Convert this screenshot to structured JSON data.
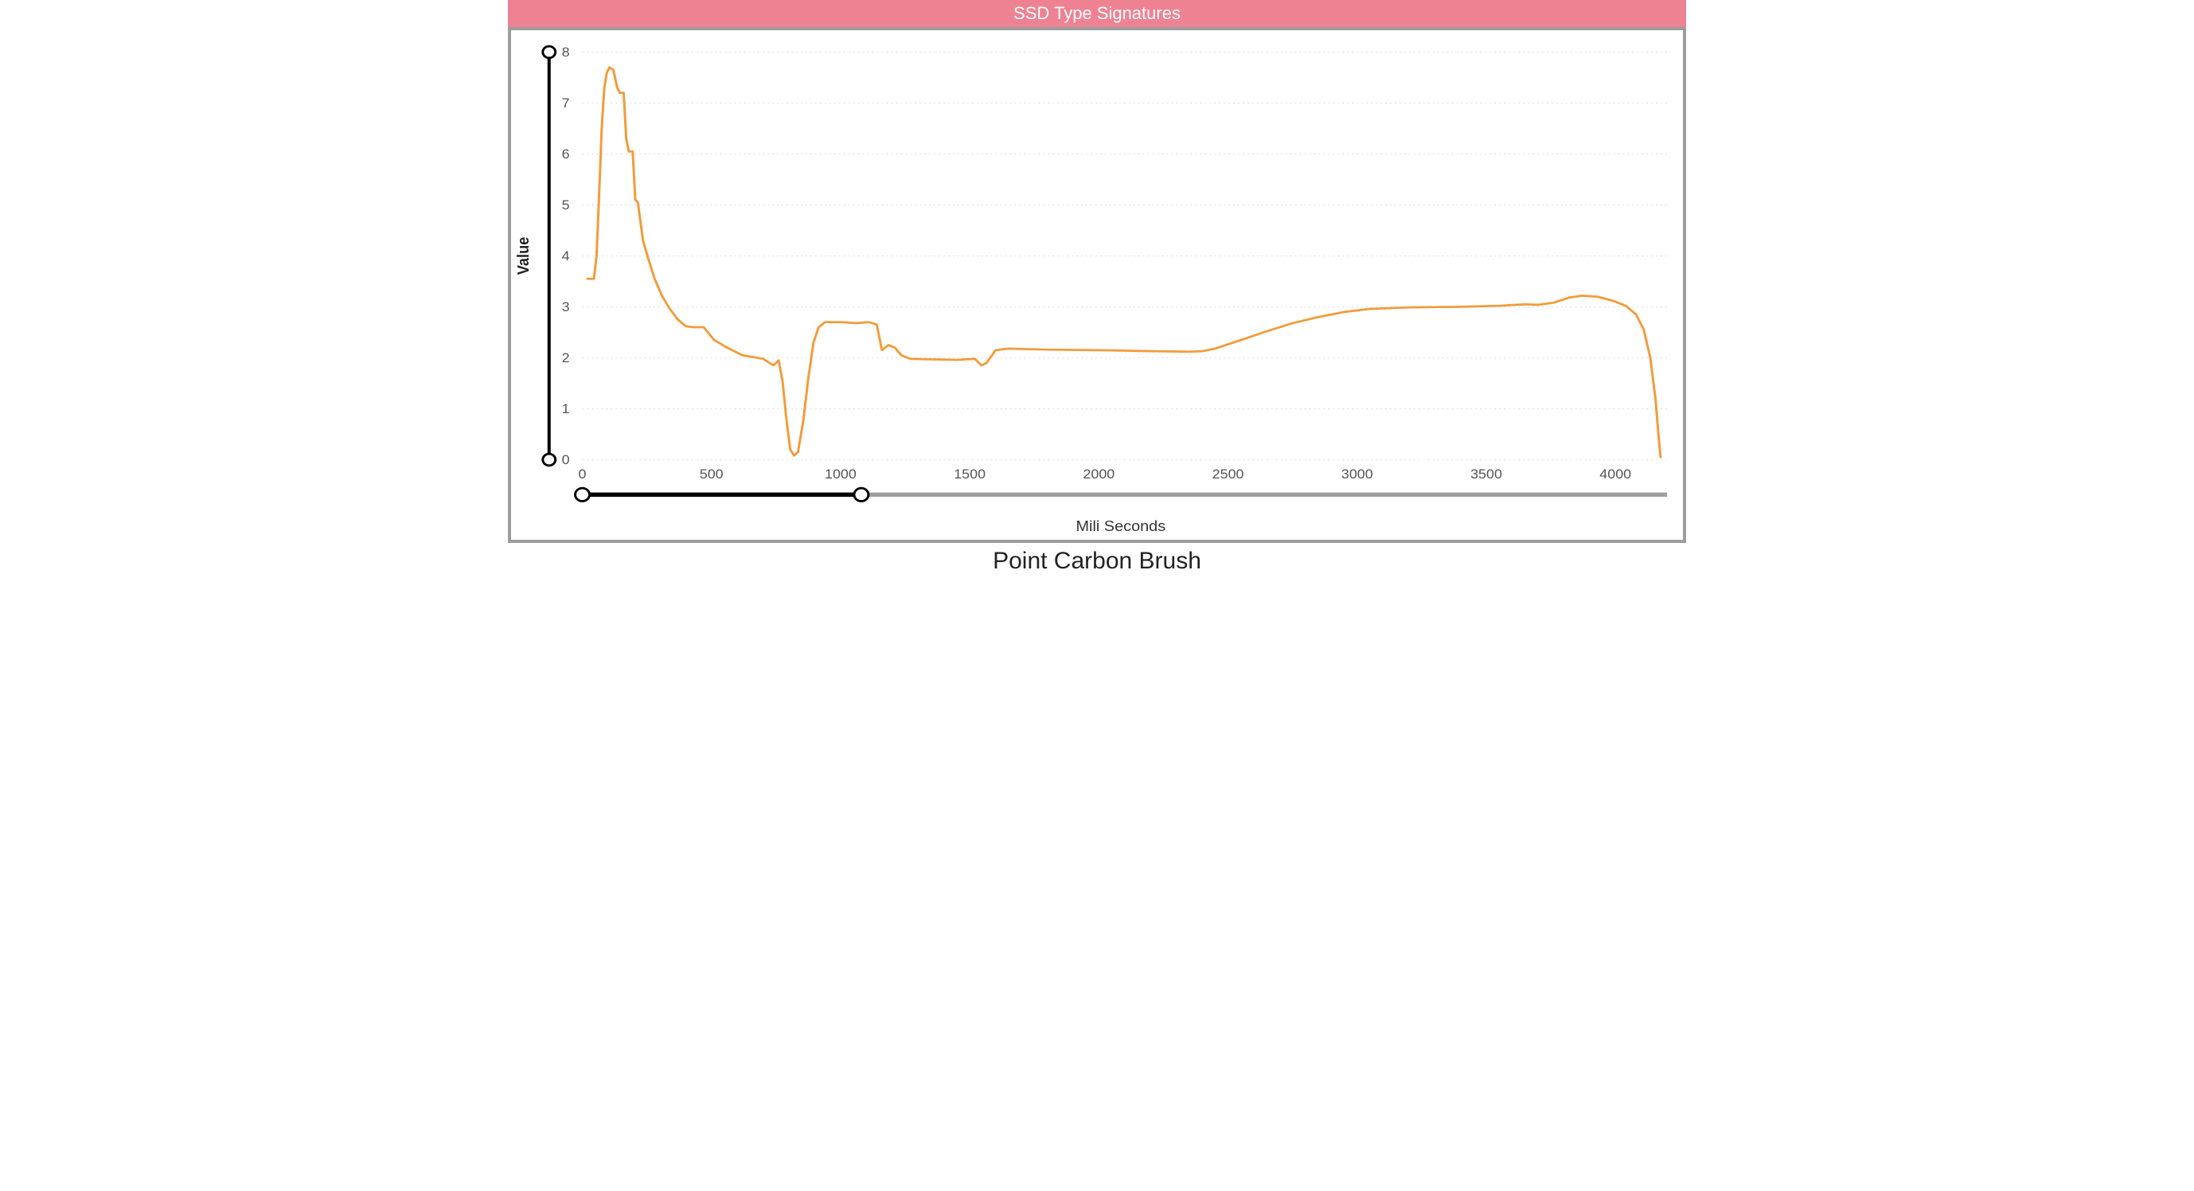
{
  "header": {
    "title": "SSD Type Signatures",
    "background_color": "#ef8292",
    "text_color": "#ffffff",
    "fontsize": 22
  },
  "panel": {
    "border_color": "#9d9d9d",
    "border_width": 4,
    "background_color": "#ffffff"
  },
  "figure_caption": "Point Carbon Brush",
  "chart": {
    "type": "line",
    "xlabel": "Mili Seconds",
    "ylabel": "Value",
    "xlabel_fontsize": 20,
    "ylabel_fontsize": 20,
    "tick_fontsize": 18,
    "line_color": "#f39b3a",
    "line_width": 3,
    "grid_color": "#d9d9d9",
    "axis_text_color": "#555555",
    "background_color": "#ffffff",
    "xlim": [
      0,
      4200
    ],
    "ylim": [
      0,
      8
    ],
    "xticks": [
      0,
      500,
      1000,
      1500,
      2000,
      2500,
      3000,
      3500,
      4000
    ],
    "yticks": [
      0,
      1,
      2,
      3,
      4,
      5,
      6,
      7,
      8
    ],
    "x_brush": {
      "min": 0,
      "max": 4200,
      "sel_min": 0,
      "sel_max": 1080,
      "track_color": "#9d9d9d",
      "sel_color": "#000000",
      "track_width": 6
    },
    "y_brush": {
      "min": 0,
      "max": 8,
      "sel_min": 0,
      "sel_max": 8
    },
    "series": [
      {
        "x": 20,
        "y": 3.55
      },
      {
        "x": 45,
        "y": 3.55
      },
      {
        "x": 55,
        "y": 4.0
      },
      {
        "x": 65,
        "y": 5.2
      },
      {
        "x": 75,
        "y": 6.5
      },
      {
        "x": 85,
        "y": 7.3
      },
      {
        "x": 95,
        "y": 7.6
      },
      {
        "x": 105,
        "y": 7.7
      },
      {
        "x": 120,
        "y": 7.65
      },
      {
        "x": 135,
        "y": 7.3
      },
      {
        "x": 145,
        "y": 7.2
      },
      {
        "x": 160,
        "y": 7.2
      },
      {
        "x": 170,
        "y": 6.3
      },
      {
        "x": 180,
        "y": 6.05
      },
      {
        "x": 195,
        "y": 6.05
      },
      {
        "x": 205,
        "y": 5.1
      },
      {
        "x": 215,
        "y": 5.05
      },
      {
        "x": 235,
        "y": 4.3
      },
      {
        "x": 255,
        "y": 3.95
      },
      {
        "x": 280,
        "y": 3.55
      },
      {
        "x": 310,
        "y": 3.2
      },
      {
        "x": 340,
        "y": 2.95
      },
      {
        "x": 370,
        "y": 2.75
      },
      {
        "x": 400,
        "y": 2.62
      },
      {
        "x": 430,
        "y": 2.6
      },
      {
        "x": 470,
        "y": 2.6
      },
      {
        "x": 510,
        "y": 2.35
      },
      {
        "x": 560,
        "y": 2.2
      },
      {
        "x": 620,
        "y": 2.05
      },
      {
        "x": 700,
        "y": 1.98
      },
      {
        "x": 740,
        "y": 1.85
      },
      {
        "x": 760,
        "y": 1.95
      },
      {
        "x": 775,
        "y": 1.55
      },
      {
        "x": 790,
        "y": 0.8
      },
      {
        "x": 805,
        "y": 0.2
      },
      {
        "x": 820,
        "y": 0.08
      },
      {
        "x": 835,
        "y": 0.15
      },
      {
        "x": 855,
        "y": 0.75
      },
      {
        "x": 875,
        "y": 1.6
      },
      {
        "x": 895,
        "y": 2.3
      },
      {
        "x": 915,
        "y": 2.6
      },
      {
        "x": 940,
        "y": 2.7
      },
      {
        "x": 1000,
        "y": 2.7
      },
      {
        "x": 1060,
        "y": 2.68
      },
      {
        "x": 1110,
        "y": 2.7
      },
      {
        "x": 1140,
        "y": 2.65
      },
      {
        "x": 1160,
        "y": 2.15
      },
      {
        "x": 1185,
        "y": 2.25
      },
      {
        "x": 1210,
        "y": 2.2
      },
      {
        "x": 1235,
        "y": 2.05
      },
      {
        "x": 1270,
        "y": 1.98
      },
      {
        "x": 1350,
        "y": 1.97
      },
      {
        "x": 1450,
        "y": 1.96
      },
      {
        "x": 1520,
        "y": 1.98
      },
      {
        "x": 1545,
        "y": 1.85
      },
      {
        "x": 1565,
        "y": 1.9
      },
      {
        "x": 1600,
        "y": 2.15
      },
      {
        "x": 1650,
        "y": 2.18
      },
      {
        "x": 1800,
        "y": 2.16
      },
      {
        "x": 2000,
        "y": 2.15
      },
      {
        "x": 2200,
        "y": 2.13
      },
      {
        "x": 2350,
        "y": 2.12
      },
      {
        "x": 2400,
        "y": 2.13
      },
      {
        "x": 2450,
        "y": 2.18
      },
      {
        "x": 2550,
        "y": 2.35
      },
      {
        "x": 2650,
        "y": 2.52
      },
      {
        "x": 2750,
        "y": 2.68
      },
      {
        "x": 2850,
        "y": 2.8
      },
      {
        "x": 2950,
        "y": 2.9
      },
      {
        "x": 3050,
        "y": 2.96
      },
      {
        "x": 3200,
        "y": 2.99
      },
      {
        "x": 3400,
        "y": 3.0
      },
      {
        "x": 3550,
        "y": 3.02
      },
      {
        "x": 3650,
        "y": 3.05
      },
      {
        "x": 3700,
        "y": 3.04
      },
      {
        "x": 3760,
        "y": 3.08
      },
      {
        "x": 3820,
        "y": 3.18
      },
      {
        "x": 3870,
        "y": 3.22
      },
      {
        "x": 3930,
        "y": 3.2
      },
      {
        "x": 3990,
        "y": 3.12
      },
      {
        "x": 4040,
        "y": 3.02
      },
      {
        "x": 4080,
        "y": 2.85
      },
      {
        "x": 4110,
        "y": 2.55
      },
      {
        "x": 4135,
        "y": 2.0
      },
      {
        "x": 4155,
        "y": 1.2
      },
      {
        "x": 4168,
        "y": 0.4
      },
      {
        "x": 4175,
        "y": 0.05
      }
    ]
  }
}
